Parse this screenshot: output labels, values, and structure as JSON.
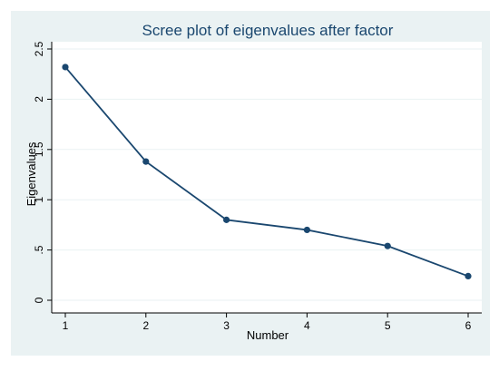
{
  "chart_data": {
    "type": "line",
    "title": "Scree plot of eigenvalues after factor",
    "xlabel": "Number",
    "ylabel": "Eigenvalues",
    "x": [
      1,
      2,
      3,
      4,
      5,
      6
    ],
    "series": [
      {
        "values": [
          2.32,
          1.38,
          0.8,
          0.7,
          0.54,
          0.24
        ]
      }
    ],
    "xticks": [
      "1",
      "2",
      "3",
      "4",
      "5",
      "6"
    ],
    "yticks": [
      {
        "value": 0,
        "label": "0"
      },
      {
        "value": 0.5,
        "label": ".5"
      },
      {
        "value": 1,
        "label": "1"
      },
      {
        "value": 1.5,
        "label": "1.5"
      },
      {
        "value": 2,
        "label": "2"
      },
      {
        "value": 2.5,
        "label": "2.5"
      }
    ],
    "xlim": [
      1,
      6
    ],
    "ylim": [
      0,
      2.5
    ],
    "grid": true,
    "legend": "none"
  },
  "colors": {
    "outer_background": "#eaf2f3",
    "plot_background": "#ffffff",
    "line": "#1a476f",
    "gridline": "#eaf2f3",
    "axis": "#000000",
    "title": "#1a476f"
  }
}
